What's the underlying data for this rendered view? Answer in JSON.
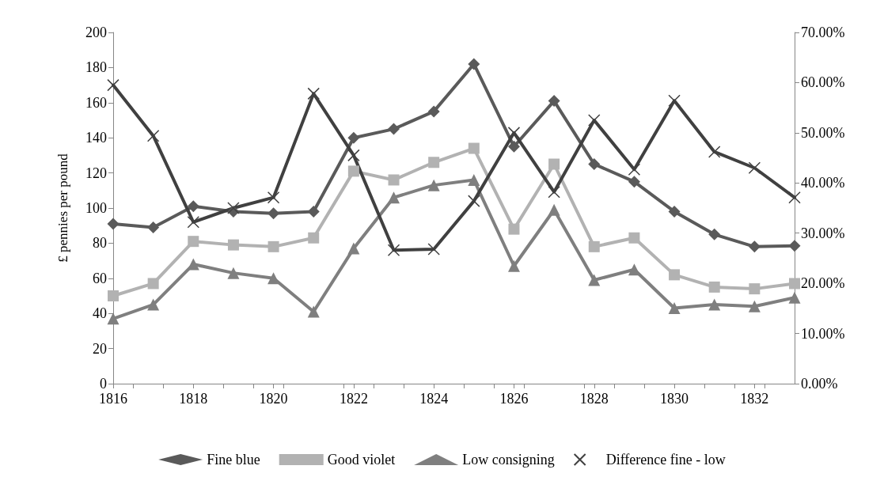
{
  "chart_data": {
    "type": "line",
    "ylabel": "£ pennies per pound",
    "x": [
      1816,
      1817,
      1818,
      1819,
      1820,
      1821,
      1822,
      1823,
      1824,
      1825,
      1826,
      1827,
      1828,
      1829,
      1830,
      1831,
      1832,
      1833
    ],
    "xlim": [
      1816,
      1833
    ],
    "xticks": [
      1816,
      1818,
      1820,
      1822,
      1824,
      1826,
      1828,
      1830,
      1832
    ],
    "ylim": [
      0,
      200
    ],
    "yticks": [
      0,
      20,
      40,
      60,
      80,
      100,
      120,
      140,
      160,
      180,
      200
    ],
    "y2lim": [
      0,
      70
    ],
    "y2ticks": [
      {
        "value": 0,
        "label": "0.00%"
      },
      {
        "value": 10,
        "label": "10.00%"
      },
      {
        "value": 20,
        "label": "20.00%"
      },
      {
        "value": 30,
        "label": "30.00%"
      },
      {
        "value": 40,
        "label": "40.00%"
      },
      {
        "value": 50,
        "label": "50.00%"
      },
      {
        "value": 60,
        "label": "60.00%"
      },
      {
        "value": 70,
        "label": "70.00%"
      }
    ],
    "grid": false,
    "legend": "bottom",
    "series": [
      {
        "name": "Fine blue",
        "color": "#5a5a5a",
        "marker": "diamond",
        "values": [
          91,
          89,
          101,
          98,
          97,
          98,
          140,
          145,
          155,
          182,
          135,
          161,
          125,
          115,
          98,
          85,
          78,
          78.5
        ]
      },
      {
        "name": "Good violet",
        "color": "#b2b2b2",
        "marker": "square",
        "values": [
          50,
          57,
          81,
          79,
          78,
          83,
          121,
          116,
          126,
          134,
          88,
          125,
          78,
          83,
          62,
          55,
          54,
          57
        ]
      },
      {
        "name": "Low consigning",
        "color": "#7f7f7f",
        "marker": "triangle",
        "values": [
          37,
          45,
          68,
          63,
          60,
          41,
          77,
          106,
          113,
          116,
          67,
          99,
          59,
          65,
          43,
          45,
          44,
          49
        ]
      },
      {
        "name": "Difference fine - low",
        "color": "#404040",
        "marker": "cross",
        "axis": "y2",
        "values": [
          59.5,
          49.4,
          32.2,
          35,
          37.1,
          57.8,
          45.5,
          26.6,
          26.8,
          36.4,
          50,
          38.2,
          52.5,
          42.7,
          56.4,
          46.2,
          43,
          37.1
        ]
      }
    ]
  }
}
